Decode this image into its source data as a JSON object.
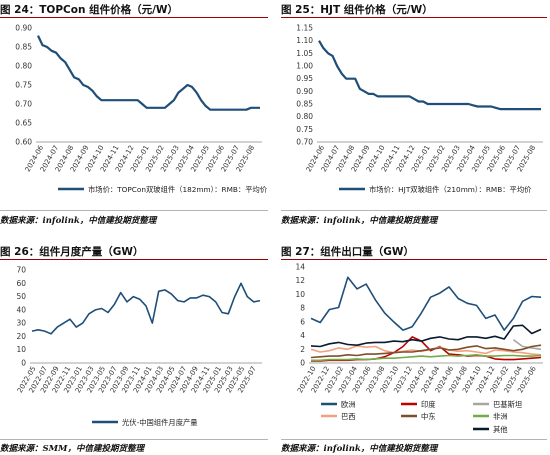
{
  "panels": [
    {
      "title": "图 24：TOPCon 组件价格（元/W）",
      "source": "数据来源：infolink，中信建投期货整理"
    },
    {
      "title": "图 25：HJT 组件价格（元/W）",
      "source": "数据来源：infolink，中信建投期货整理"
    },
    {
      "title": "图 26：组件月度产量（GW）",
      "source": "数据来源：SMM，中信建投期货整理"
    },
    {
      "title": "图 27：组件出口量（GW）",
      "source": "数据来源：infolink，中信建投期货整理"
    }
  ],
  "chart_data": [
    {
      "type": "line",
      "title": "",
      "ylim": [
        0.6,
        0.9
      ],
      "yticks": [
        "0.60",
        "0.65",
        "0.70",
        "0.75",
        "0.80",
        "0.85",
        "0.90"
      ],
      "xticks": [
        "2024-06",
        "2024-07",
        "2024-08",
        "2024-09",
        "2024-10",
        "2024-11",
        "2024-12",
        "2025-01",
        "2025-02",
        "2025-03",
        "2025-04",
        "2025-05",
        "2025-06",
        "2025-07",
        "2025-08"
      ],
      "legend": "bottom",
      "series": [
        {
          "name": "市场价：TOPCon双玻组件（182mm）：RMB：平均价",
          "color": "#1f4e79",
          "values": [
            0.88,
            0.855,
            0.85,
            0.84,
            0.835,
            0.82,
            0.81,
            0.79,
            0.77,
            0.765,
            0.75,
            0.745,
            0.735,
            0.72,
            0.71,
            0.71,
            0.71,
            0.71,
            0.71,
            0.71,
            0.71,
            0.71,
            0.71,
            0.7,
            0.69,
            0.69,
            0.69,
            0.69,
            0.69,
            0.7,
            0.71,
            0.73,
            0.74,
            0.75,
            0.745,
            0.73,
            0.71,
            0.695,
            0.685,
            0.685,
            0.685,
            0.685,
            0.685,
            0.685,
            0.685,
            0.685,
            0.685,
            0.69,
            0.69,
            0.69
          ]
        }
      ]
    },
    {
      "type": "line",
      "title": "",
      "ylim": [
        0.7,
        1.15
      ],
      "yticks": [
        "0.70",
        "0.75",
        "0.80",
        "0.85",
        "0.90",
        "0.95",
        "1.00",
        "1.05",
        "1.10",
        "1.15"
      ],
      "xticks": [
        "2024-06",
        "2024-07",
        "2024-08",
        "2024-09",
        "2024-10",
        "2024-11",
        "2024-12",
        "2025-01",
        "2025-02",
        "2025-03",
        "2025-04",
        "2025-05",
        "2025-06",
        "2025-07",
        "2025-08"
      ],
      "legend": "bottom",
      "series": [
        {
          "name": "市场价：HJT双玻组件（210mm）：RMB：平均价",
          "color": "#1f4e79",
          "values": [
            1.1,
            1.07,
            1.05,
            1.04,
            1.0,
            0.97,
            0.95,
            0.95,
            0.95,
            0.91,
            0.9,
            0.89,
            0.89,
            0.88,
            0.88,
            0.88,
            0.88,
            0.88,
            0.88,
            0.88,
            0.88,
            0.87,
            0.86,
            0.86,
            0.85,
            0.85,
            0.85,
            0.85,
            0.85,
            0.85,
            0.85,
            0.85,
            0.85,
            0.85,
            0.845,
            0.84,
            0.84,
            0.84,
            0.84,
            0.835,
            0.83,
            0.83,
            0.83,
            0.83,
            0.83,
            0.83,
            0.83,
            0.83,
            0.83,
            0.83
          ]
        }
      ]
    },
    {
      "type": "line",
      "title": "",
      "ylim": [
        0,
        70
      ],
      "yticks": [
        "0",
        "10",
        "20",
        "30",
        "40",
        "50",
        "60",
        "70"
      ],
      "xticks": [
        "2022-05",
        "2022-07",
        "2022-09",
        "2022-11",
        "2023-01",
        "2023-03",
        "2023-05",
        "2023-07",
        "2023-09",
        "2023-11",
        "2024-01",
        "2024-03",
        "2024-05",
        "2024-07",
        "2024-09",
        "2024-11",
        "2025-01",
        "2025-03",
        "2025-05",
        "2025-07"
      ],
      "legend": "bottom",
      "series": [
        {
          "name": "光伏-中国组件月度产量",
          "color": "#1f4e79",
          "values": [
            24,
            25,
            24,
            22,
            27,
            30,
            33,
            27,
            30,
            37,
            40,
            41,
            38,
            44,
            53,
            46,
            50,
            48,
            43,
            30,
            54,
            55,
            52,
            47,
            46,
            49,
            49,
            51,
            50,
            46,
            38,
            37,
            50,
            60,
            50,
            46,
            47
          ]
        }
      ]
    },
    {
      "type": "line",
      "title": "",
      "ylim": [
        0,
        14
      ],
      "yticks": [
        "0",
        "2",
        "4",
        "6",
        "8",
        "10",
        "12",
        "14"
      ],
      "xticks": [
        "2022-10",
        "2022-12",
        "2023-02",
        "2023-04",
        "2023-06",
        "2023-08",
        "2023-10",
        "2023-12",
        "2024-02",
        "2024-04",
        "2024-06",
        "2024-08",
        "2024-10",
        "2024-12",
        "2025-02",
        "2025-04",
        "2025-06"
      ],
      "legend": "bottom",
      "series": [
        {
          "name": "欧洲",
          "color": "#1f4e79",
          "values": [
            6.5,
            5.9,
            7.8,
            8.1,
            12.5,
            10.8,
            11.5,
            9.2,
            7.3,
            6.0,
            4.8,
            5.3,
            7.3,
            9.6,
            10.2,
            11.1,
            9.4,
            8.7,
            8.4,
            6.5,
            7.0,
            4.8,
            6.5,
            9.0,
            9.7,
            9.6
          ]
        },
        {
          "name": "印度",
          "color": "#c00000",
          "values": [
            0.3,
            0.3,
            0.4,
            0.4,
            0.4,
            0.5,
            0.5,
            0.6,
            0.9,
            1.5,
            2.4,
            3.8,
            3.2,
            1.8,
            2.4,
            1.3,
            1.2,
            1.0,
            1.1,
            1.0,
            0.6,
            0.5,
            0.5,
            0.6,
            0.7,
            0.8
          ]
        },
        {
          "name": "巴基斯坦",
          "color": "#a6a6a6",
          "values": [
            null,
            null,
            null,
            null,
            null,
            null,
            null,
            null,
            null,
            null,
            null,
            null,
            null,
            null,
            null,
            null,
            null,
            null,
            null,
            null,
            null,
            null,
            3.4,
            2.4,
            2.2,
            2.0
          ]
        },
        {
          "name": "巴西",
          "color": "#f4a080",
          "values": [
            2.0,
            1.6,
            1.8,
            2.2,
            2.0,
            2.5,
            2.3,
            2.4,
            1.8,
            1.5,
            1.7,
            1.9,
            1.7,
            2.0,
            2.3,
            1.9,
            1.7,
            1.8,
            1.6,
            1.4,
            1.9,
            1.8,
            1.6,
            1.5,
            1.3,
            1.2
          ]
        },
        {
          "name": "中东",
          "color": "#7f4f2a",
          "values": [
            0.8,
            0.9,
            1.0,
            1.0,
            1.2,
            1.1,
            1.3,
            1.3,
            1.4,
            1.5,
            1.6,
            1.6,
            1.8,
            2.0,
            2.2,
            1.9,
            2.0,
            2.3,
            2.5,
            2.1,
            2.2,
            2.0,
            1.8,
            2.0,
            2.4,
            2.6
          ]
        },
        {
          "name": "非洲",
          "color": "#70ad47",
          "values": [
            0.4,
            0.4,
            0.5,
            0.5,
            0.5,
            0.6,
            0.5,
            0.6,
            0.7,
            0.7,
            0.8,
            0.9,
            1.0,
            0.9,
            1.0,
            1.1,
            1.0,
            1.1,
            1.2,
            1.0,
            1.0,
            1.1,
            1.1,
            1.0,
            1.0,
            1.1
          ]
        },
        {
          "name": "其他",
          "color": "#0a1a2e",
          "values": [
            2.5,
            2.4,
            2.8,
            3.0,
            2.7,
            2.6,
            2.9,
            3.0,
            3.0,
            3.2,
            3.1,
            3.4,
            3.2,
            3.6,
            3.8,
            3.5,
            3.4,
            3.8,
            3.8,
            3.6,
            3.9,
            3.5,
            5.4,
            5.5,
            4.3,
            4.9
          ]
        }
      ]
    }
  ]
}
